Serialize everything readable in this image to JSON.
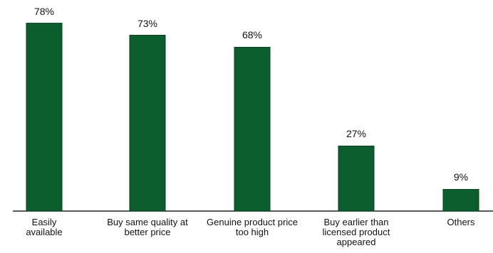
{
  "chart_data": {
    "type": "bar",
    "categories": [
      "Easily available",
      "Buy same quality at better price",
      "Genuine product price too high",
      "Buy earlier than licensed product appeared",
      "Others"
    ],
    "values": [
      78,
      73,
      68,
      27,
      9
    ],
    "value_labels": [
      "78%",
      "73%",
      "68%",
      "27%",
      "9%"
    ],
    "color": "#0d5e2e"
  }
}
